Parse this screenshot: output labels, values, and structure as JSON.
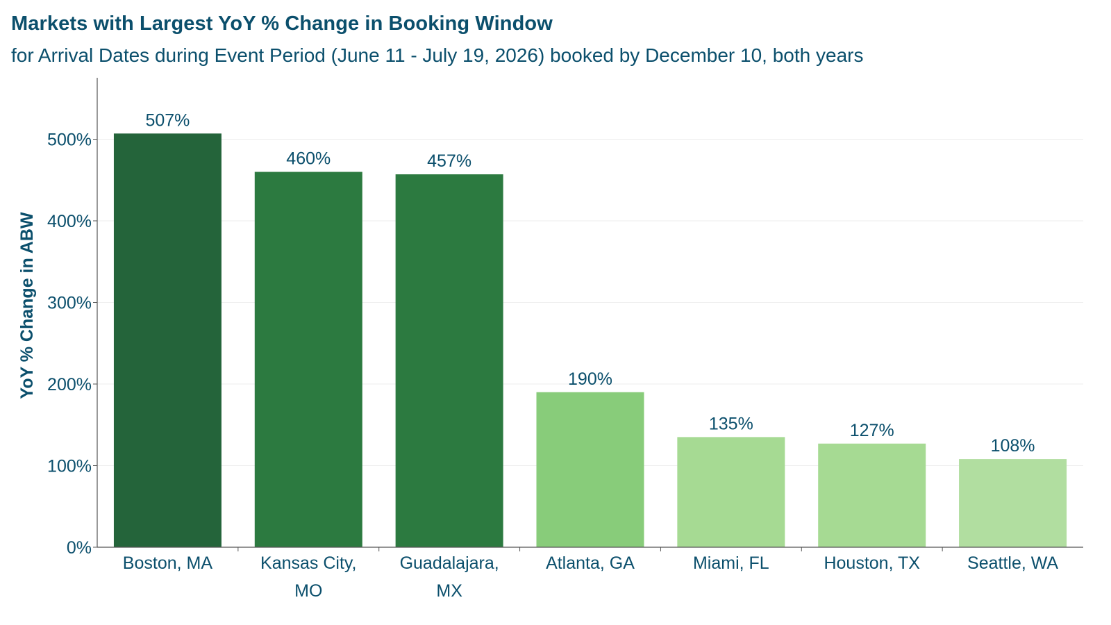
{
  "chart_data": {
    "type": "bar",
    "title": "Markets with Largest YoY % Change in Booking Window",
    "subtitle": "for Arrival Dates during Event Period (June 11 - July 19, 2026) booked by December 10, both years",
    "xlabel": "",
    "ylabel": "YoY % Change in ABW",
    "categories": [
      [
        "Boston, MA"
      ],
      [
        "Kansas City,",
        "MO"
      ],
      [
        "Guadalajara,",
        "MX"
      ],
      [
        "Atlanta, GA"
      ],
      [
        "Miami, FL"
      ],
      [
        "Houston, TX"
      ],
      [
        "Seattle, WA"
      ]
    ],
    "values": [
      507,
      460,
      457,
      190,
      135,
      127,
      108
    ],
    "value_labels": [
      "507%",
      "460%",
      "457%",
      "190%",
      "135%",
      "127%",
      "108%"
    ],
    "bar_colors": [
      "#24643a",
      "#2c7a40",
      "#2c7a40",
      "#88cc7a",
      "#a6da93",
      "#a6da93",
      "#b1dea0"
    ],
    "yticks": [
      0,
      100,
      200,
      300,
      400,
      500
    ],
    "ytick_labels": [
      "0%",
      "100%",
      "200%",
      "300%",
      "400%",
      "500%"
    ],
    "ylim": [
      0,
      560
    ],
    "grid": true,
    "colors": {
      "text": "#0b4f6c",
      "grid": "#eeeeee",
      "axis": "#555555"
    }
  }
}
